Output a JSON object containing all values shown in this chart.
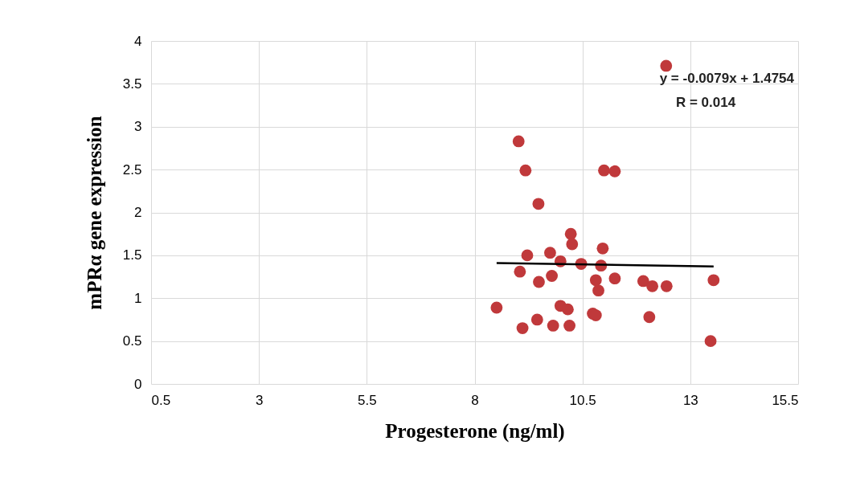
{
  "chart_data": {
    "type": "scatter",
    "xlabel": "Progesterone (ng/ml)",
    "ylabel": "mPRα gene expression",
    "xlim": [
      0.5,
      15.5
    ],
    "xticks": [
      0.5,
      3,
      5.5,
      8,
      10.5,
      13,
      15.5
    ],
    "ylim": [
      0,
      4
    ],
    "yticks": [
      0,
      0.5,
      1,
      1.5,
      2,
      2.5,
      3,
      3.5,
      4
    ],
    "grid": true,
    "annotations": [
      "y = -0.0079x + 1.4754",
      "R = 0.014"
    ],
    "series": [
      {
        "marker": "circle",
        "color": "#c0393b",
        "x": [
          12.44,
          9.02,
          9.18,
          9.48,
          11.0,
          11.25,
          10.23,
          10.26,
          10.97,
          9.22,
          9.75,
          9.99,
          10.47,
          10.93,
          9.05,
          9.79,
          9.49,
          10.81,
          11.25,
          10.87,
          11.91,
          12.12,
          12.45,
          13.54,
          8.51,
          9.99,
          10.16,
          10.74,
          10.81,
          12.05,
          9.45,
          9.11,
          9.82,
          10.2,
          13.47
        ],
        "values": [
          3.71,
          2.83,
          2.49,
          2.1,
          2.49,
          2.48,
          1.75,
          1.63,
          1.58,
          1.5,
          1.53,
          1.43,
          1.4,
          1.38,
          1.31,
          1.26,
          1.19,
          1.21,
          1.23,
          1.09,
          1.2,
          1.14,
          1.14,
          1.21,
          0.89,
          0.91,
          0.87,
          0.82,
          0.8,
          0.78,
          0.75,
          0.65,
          0.68,
          0.68,
          0.5
        ]
      },
      {
        "type": "line",
        "color": "#000000",
        "x": [
          8.51,
          13.54
        ],
        "values": [
          1.41,
          1.37
        ]
      }
    ]
  }
}
